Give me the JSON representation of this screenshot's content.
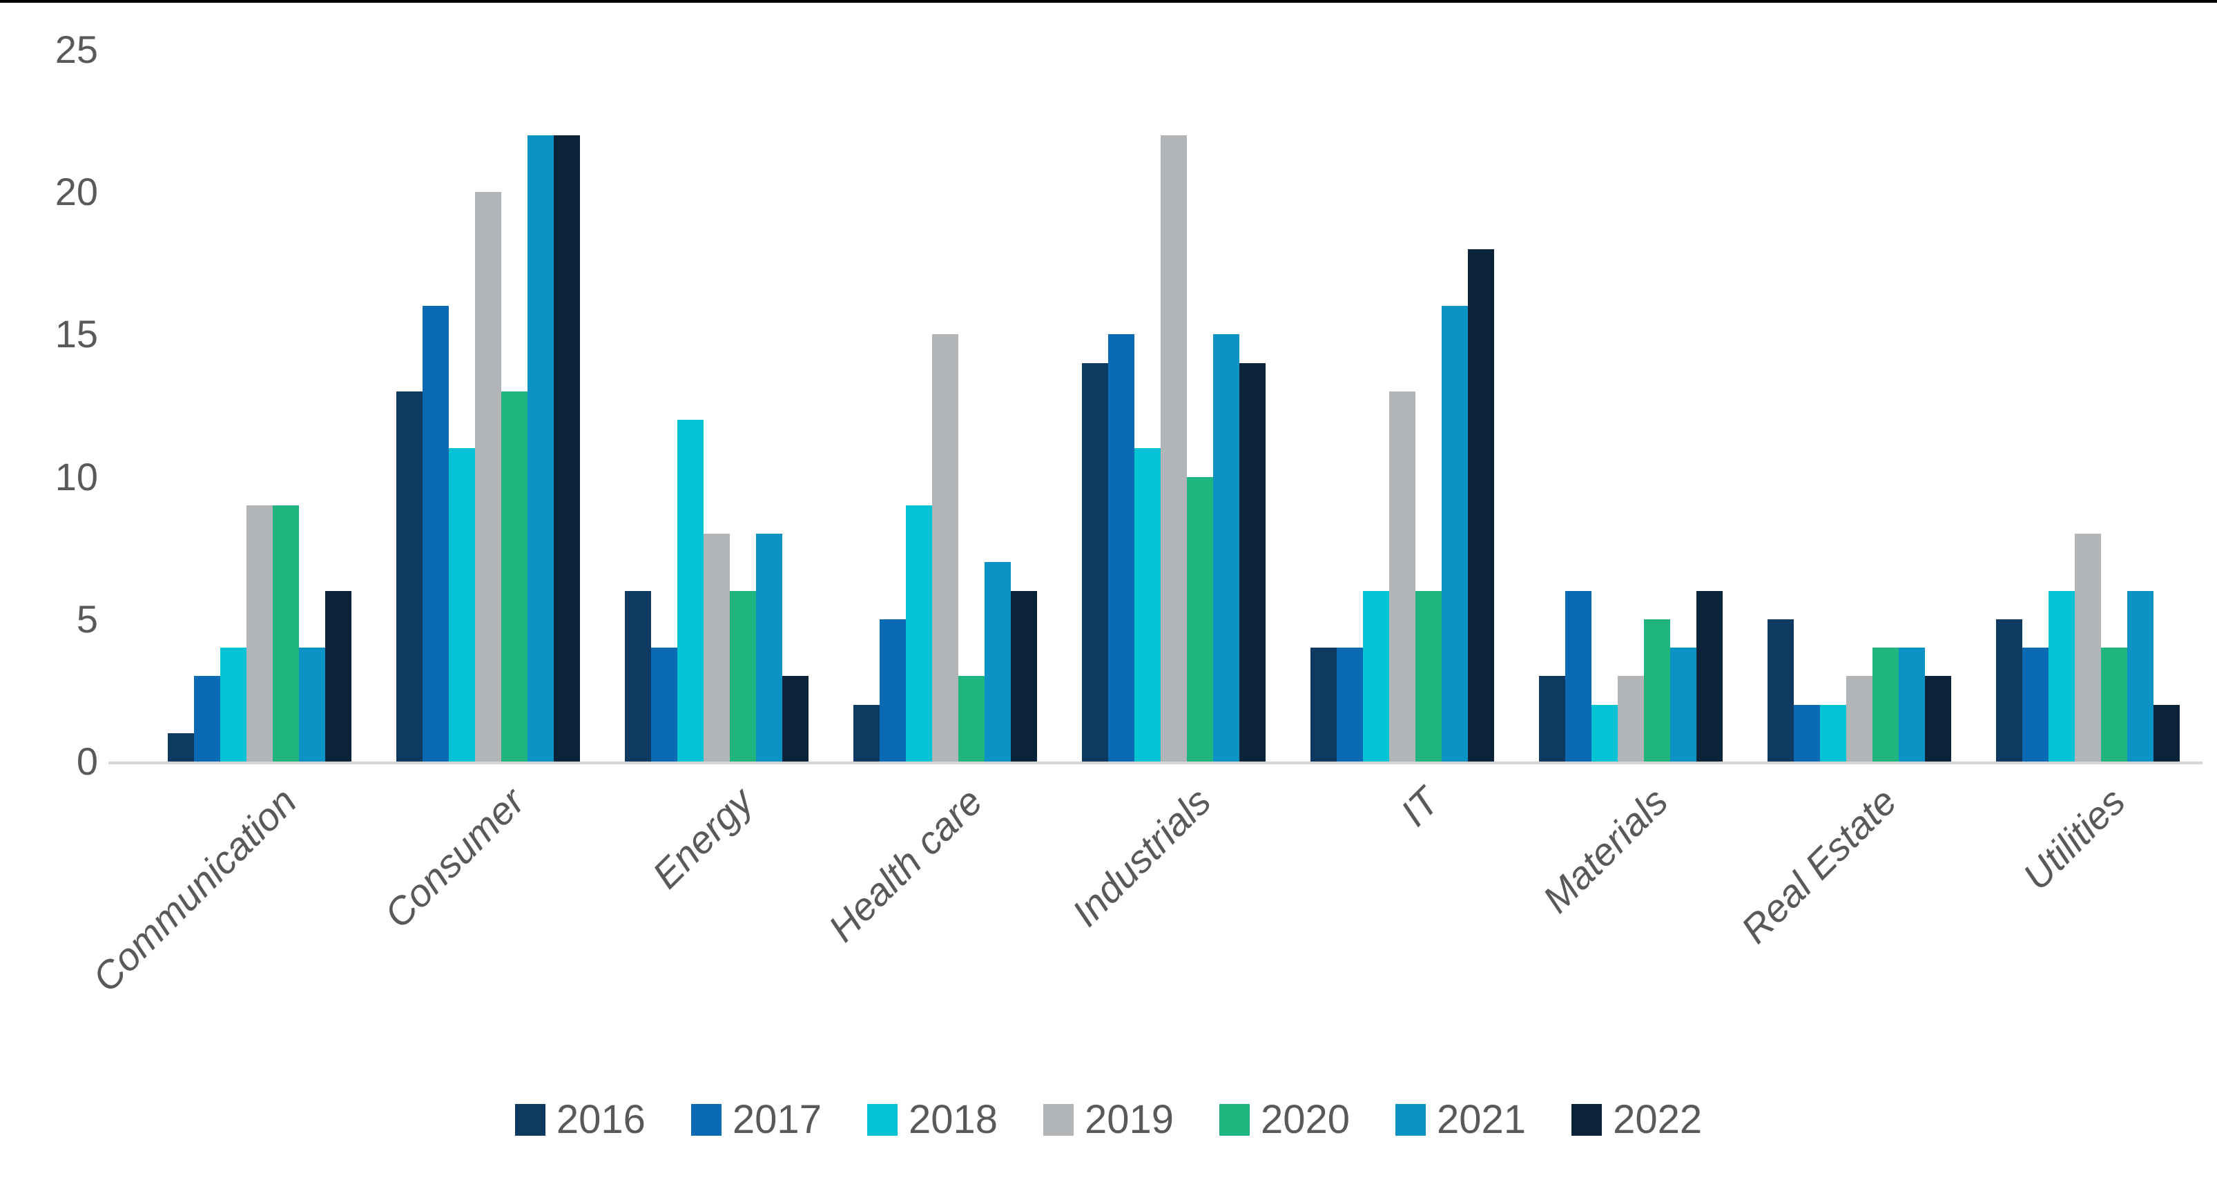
{
  "chart_data": {
    "type": "bar",
    "title": "",
    "xlabel": "",
    "ylabel": "",
    "categories": [
      "Communication",
      "Consumer",
      "Energy",
      "Health care",
      "Industrials",
      "IT",
      "Materials",
      "Real Estate",
      "Utilities"
    ],
    "series": [
      {
        "name": "2016",
        "color": "#0E3A61",
        "values": [
          1,
          13,
          6,
          2,
          14,
          4,
          3,
          5,
          5
        ]
      },
      {
        "name": "2017",
        "color": "#0A6AB3",
        "values": [
          3,
          16,
          4,
          5,
          15,
          4,
          6,
          2,
          4
        ]
      },
      {
        "name": "2018",
        "color": "#04C3D5",
        "values": [
          4,
          11,
          12,
          9,
          11,
          6,
          2,
          2,
          6
        ]
      },
      {
        "name": "2019",
        "color": "#B1B5B8",
        "values": [
          9,
          20,
          8,
          15,
          22,
          13,
          3,
          3,
          8
        ]
      },
      {
        "name": "2020",
        "color": "#20B57E",
        "values": [
          9,
          13,
          6,
          3,
          10,
          6,
          5,
          4,
          4
        ]
      },
      {
        "name": "2021",
        "color": "#0A93C4",
        "values": [
          4,
          22,
          8,
          7,
          15,
          16,
          4,
          4,
          6
        ]
      },
      {
        "name": "2022",
        "color": "#0A2338",
        "values": [
          6,
          22,
          3,
          6,
          14,
          18,
          6,
          3,
          2
        ]
      }
    ],
    "ylim": [
      0,
      25
    ],
    "yticks": [
      0,
      5,
      10,
      15,
      20,
      25
    ],
    "grid": false,
    "legend_position": "bottom",
    "bar_orientation": "vertical"
  },
  "style": {
    "axis_text_color": "#595959",
    "axis_line_color": "#D6D6D6",
    "top_border_color": "#000000",
    "background_color": "#FFFFFF"
  }
}
